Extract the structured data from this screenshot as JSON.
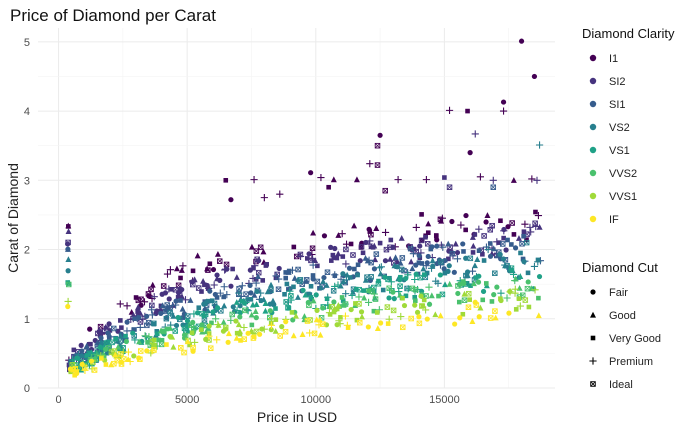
{
  "chart_data": {
    "type": "scatter",
    "title": "Price of Diamond per Carat",
    "xlabel": "Price in USD",
    "ylabel": "Carat of Diamond",
    "xlim": [
      -800,
      19300
    ],
    "ylim": [
      0,
      5.2
    ],
    "x_ticks": [
      0,
      5000,
      10000,
      15000
    ],
    "x_tick_labels": [
      "0",
      "5000",
      "10000",
      "15000"
    ],
    "y_ticks": [
      0,
      1,
      2,
      3,
      4,
      5
    ],
    "y_tick_labels": [
      "0",
      "1",
      "2",
      "3",
      "4",
      "5"
    ],
    "grid": true,
    "legend_placement": "right",
    "color_legend": {
      "title": "Diamond Clarity",
      "entries": [
        {
          "label": "I1",
          "color": "#440154"
        },
        {
          "label": "SI2",
          "color": "#46337E"
        },
        {
          "label": "SI1",
          "color": "#365C8D"
        },
        {
          "label": "VS2",
          "color": "#277F8E"
        },
        {
          "label": "VS1",
          "color": "#1FA187"
        },
        {
          "label": "VVS2",
          "color": "#4AC16D"
        },
        {
          "label": "VVS1",
          "color": "#A0DA39"
        },
        {
          "label": "IF",
          "color": "#FDE725"
        }
      ]
    },
    "shape_legend": {
      "title": "Diamond Cut",
      "entries": [
        {
          "label": "Fair",
          "shape": "circle"
        },
        {
          "label": "Good",
          "shape": "triangle"
        },
        {
          "label": "Very Good",
          "shape": "square"
        },
        {
          "label": "Premium",
          "shape": "plus"
        },
        {
          "label": "Ideal",
          "shape": "square-cross"
        }
      ]
    },
    "points": [
      {
        "x": 18000,
        "y": 5.01,
        "clarity": "I1",
        "cut": "Fair"
      },
      {
        "x": 18500,
        "y": 4.5,
        "clarity": "I1",
        "cut": "Fair"
      },
      {
        "x": 17300,
        "y": 4.13,
        "clarity": "I1",
        "cut": "Fair"
      },
      {
        "x": 15200,
        "y": 4.01,
        "clarity": "I1",
        "cut": "Premium"
      },
      {
        "x": 15900,
        "y": 4.0,
        "clarity": "I1",
        "cut": "Very Good"
      },
      {
        "x": 17300,
        "y": 4.0,
        "clarity": "I1",
        "cut": "Premium"
      },
      {
        "x": 16200,
        "y": 3.67,
        "clarity": "SI2",
        "cut": "Premium"
      },
      {
        "x": 12500,
        "y": 3.65,
        "clarity": "I1",
        "cut": "Fair"
      },
      {
        "x": 18700,
        "y": 3.51,
        "clarity": "VS2",
        "cut": "Premium"
      },
      {
        "x": 16000,
        "y": 3.4,
        "clarity": "I1",
        "cut": "Fair"
      },
      {
        "x": 12400,
        "y": 3.5,
        "clarity": "I1",
        "cut": "Ideal"
      },
      {
        "x": 12100,
        "y": 3.24,
        "clarity": "I1",
        "cut": "Premium"
      },
      {
        "x": 12400,
        "y": 3.22,
        "clarity": "I1",
        "cut": "Ideal"
      },
      {
        "x": 6500,
        "y": 3.0,
        "clarity": "I1",
        "cut": "Very Good"
      },
      {
        "x": 7600,
        "y": 3.01,
        "clarity": "I1",
        "cut": "Premium"
      },
      {
        "x": 9800,
        "y": 3.11,
        "clarity": "I1",
        "cut": "Fair"
      },
      {
        "x": 10200,
        "y": 3.04,
        "clarity": "I1",
        "cut": "Premium"
      },
      {
        "x": 10700,
        "y": 3.01,
        "clarity": "I1",
        "cut": "Good"
      },
      {
        "x": 11600,
        "y": 3.01,
        "clarity": "I1",
        "cut": "Good"
      },
      {
        "x": 13200,
        "y": 3.01,
        "clarity": "I1",
        "cut": "Premium"
      },
      {
        "x": 14300,
        "y": 3.01,
        "clarity": "I1",
        "cut": "Premium"
      },
      {
        "x": 15000,
        "y": 3.04,
        "clarity": "SI2",
        "cut": "Very Good"
      },
      {
        "x": 16400,
        "y": 3.05,
        "clarity": "I1",
        "cut": "Premium"
      },
      {
        "x": 16900,
        "y": 3.0,
        "clarity": "SI2",
        "cut": "Premium"
      },
      {
        "x": 17700,
        "y": 3.0,
        "clarity": "I1",
        "cut": "Good"
      },
      {
        "x": 18400,
        "y": 3.02,
        "clarity": "I1",
        "cut": "Premium"
      },
      {
        "x": 18600,
        "y": 3.0,
        "clarity": "SI2",
        "cut": "Premium"
      },
      {
        "x": 8000,
        "y": 2.75,
        "clarity": "I1",
        "cut": "Premium"
      },
      {
        "x": 8600,
        "y": 2.8,
        "clarity": "I1",
        "cut": "Premium"
      },
      {
        "x": 6700,
        "y": 2.72,
        "clarity": "I1",
        "cut": "Fair"
      },
      {
        "x": 10500,
        "y": 2.9,
        "clarity": "I1",
        "cut": "Very Good"
      },
      {
        "x": 12700,
        "y": 2.85,
        "clarity": "I1",
        "cut": "Ideal"
      },
      {
        "x": 15200,
        "y": 2.9,
        "clarity": "SI2",
        "cut": "Ideal"
      },
      {
        "x": 16900,
        "y": 2.9,
        "clarity": "SI1",
        "cut": "Ideal"
      },
      {
        "x": 16700,
        "y": 2.0,
        "clarity": "VS2",
        "cut": "Premium"
      },
      {
        "x": 18200,
        "y": 2.1,
        "clarity": "VS2",
        "cut": "Ideal"
      }
    ],
    "density_bands": [
      {
        "clarity": "I1",
        "anchors": [
          [
            400,
            0.45
          ],
          [
            2000,
            1.0
          ],
          [
            4000,
            1.5
          ],
          [
            6000,
            1.85
          ],
          [
            9000,
            2.05
          ],
          [
            13000,
            2.25
          ],
          [
            18800,
            2.4
          ]
        ],
        "spread": 0.22,
        "count": 90
      },
      {
        "clarity": "SI2",
        "anchors": [
          [
            400,
            0.38
          ],
          [
            2000,
            0.85
          ],
          [
            4000,
            1.25
          ],
          [
            6000,
            1.55
          ],
          [
            9000,
            1.8
          ],
          [
            13000,
            2.0
          ],
          [
            18800,
            2.2
          ]
        ],
        "spread": 0.2,
        "count": 190
      },
      {
        "clarity": "SI1",
        "anchors": [
          [
            400,
            0.33
          ],
          [
            2000,
            0.72
          ],
          [
            4000,
            1.05
          ],
          [
            6000,
            1.3
          ],
          [
            9000,
            1.55
          ],
          [
            13000,
            1.8
          ],
          [
            18800,
            2.0
          ]
        ],
        "spread": 0.2,
        "count": 190
      },
      {
        "clarity": "VS2",
        "anchors": [
          [
            400,
            0.3
          ],
          [
            2000,
            0.63
          ],
          [
            4000,
            0.92
          ],
          [
            6000,
            1.15
          ],
          [
            9000,
            1.4
          ],
          [
            13000,
            1.6
          ],
          [
            18800,
            1.8
          ]
        ],
        "spread": 0.18,
        "count": 170
      },
      {
        "clarity": "VS1",
        "anchors": [
          [
            400,
            0.28
          ],
          [
            2000,
            0.57
          ],
          [
            4000,
            0.83
          ],
          [
            6000,
            1.05
          ],
          [
            9000,
            1.25
          ],
          [
            13000,
            1.45
          ],
          [
            18800,
            1.6
          ]
        ],
        "spread": 0.17,
        "count": 140
      },
      {
        "clarity": "VVS2",
        "anchors": [
          [
            400,
            0.26
          ],
          [
            2000,
            0.5
          ],
          [
            4000,
            0.72
          ],
          [
            6000,
            0.92
          ],
          [
            9000,
            1.1
          ],
          [
            13000,
            1.3
          ],
          [
            18800,
            1.45
          ]
        ],
        "spread": 0.16,
        "count": 120
      },
      {
        "clarity": "VVS1",
        "anchors": [
          [
            400,
            0.24
          ],
          [
            2000,
            0.44
          ],
          [
            4000,
            0.62
          ],
          [
            6000,
            0.8
          ],
          [
            9000,
            0.97
          ],
          [
            13000,
            1.15
          ],
          [
            18800,
            1.3
          ]
        ],
        "spread": 0.15,
        "count": 110
      },
      {
        "clarity": "IF",
        "anchors": [
          [
            400,
            0.22
          ],
          [
            2000,
            0.38
          ],
          [
            4000,
            0.52
          ],
          [
            6000,
            0.68
          ],
          [
            9000,
            0.85
          ],
          [
            13000,
            1.0
          ],
          [
            18800,
            1.15
          ]
        ],
        "spread": 0.14,
        "count": 90
      }
    ]
  }
}
